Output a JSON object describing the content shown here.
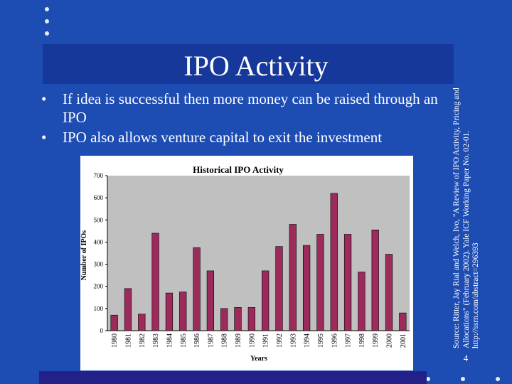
{
  "slide": {
    "title": "IPO Activity",
    "bullets": [
      "If idea is successful then more money can be raised through an IPO",
      "IPO also allows venture capital to exit the investment"
    ],
    "bullet_mark": "•",
    "source": "Source: Ritter, Jay Rial and Welch, Ivo, \"A Review of IPO Activity, Pricing and Allocations\" (February 2002). Yale ICF Working Paper No. 02-01. http://ssrn.com/abstract=296393",
    "page_number": "4"
  },
  "colors": {
    "background": "#1d4cb3",
    "title_band": "#16389a",
    "bar": "#9c2b5c",
    "chart_bg": "#ffffff",
    "plot_bg": "#c0c0c0"
  },
  "chart_data": {
    "type": "bar",
    "title": "Historical IPO Activity",
    "xlabel": "Years",
    "ylabel": "Number of IPOs",
    "categories": [
      "1980",
      "1981",
      "1982",
      "1983",
      "1984",
      "1985",
      "1986",
      "1987",
      "1988",
      "1989",
      "1990",
      "1991",
      "1992",
      "1993",
      "1994",
      "1995",
      "1996",
      "1997",
      "1998",
      "1999",
      "2000",
      "2001"
    ],
    "values": [
      70,
      190,
      75,
      440,
      170,
      175,
      375,
      270,
      100,
      105,
      105,
      270,
      380,
      480,
      385,
      435,
      620,
      435,
      265,
      455,
      345,
      80
    ],
    "ylim": [
      0,
      700
    ],
    "yticks": [
      "0",
      "100",
      "200",
      "300",
      "400",
      "500",
      "600",
      "700"
    ],
    "grid": false,
    "legend": "none"
  }
}
